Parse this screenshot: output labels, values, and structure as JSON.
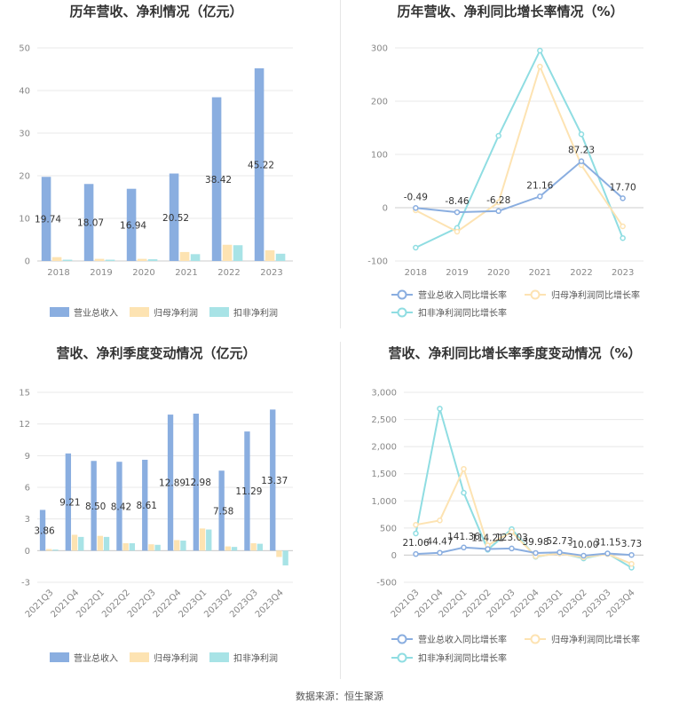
{
  "colors": {
    "revenue": "#8aaee0",
    "netprofit": "#fde3b2",
    "deducted": "#a8e3e6",
    "revenue_line": "#8aaee0",
    "netprofit_line": "#fde3b2",
    "deducted_line": "#8fdde2",
    "grid": "#e8e8e8",
    "axis": "#cccccc"
  },
  "source_text": "数据来源：恒生聚源",
  "chart_data": [
    {
      "id": "c1",
      "type": "bar",
      "title": "历年营收、净利情况（亿元）",
      "categories": [
        "2018",
        "2019",
        "2020",
        "2021",
        "2022",
        "2023"
      ],
      "ylim": [
        0,
        50
      ],
      "yticks": [
        "0",
        "10",
        "20",
        "30",
        "40",
        "50"
      ],
      "series": [
        {
          "name": "营业总收入",
          "values": [
            19.74,
            18.07,
            16.94,
            20.52,
            38.42,
            45.22
          ],
          "labels": [
            "19.74",
            "18.07",
            "16.94",
            "20.52",
            "38.42",
            "45.22"
          ]
        },
        {
          "name": "归母净利润",
          "values": [
            0.9,
            0.5,
            0.5,
            2.1,
            3.8,
            2.5
          ]
        },
        {
          "name": "扣非净利润",
          "values": [
            0.3,
            0.3,
            0.4,
            1.6,
            3.7,
            1.7
          ]
        }
      ],
      "legend": "bottom"
    },
    {
      "id": "c2",
      "type": "line",
      "title": "历年营收、净利同比增长率情况（%）",
      "categories": [
        "2018",
        "2019",
        "2020",
        "2021",
        "2022",
        "2023"
      ],
      "ylim": [
        -100,
        300
      ],
      "yticks": [
        "-100",
        "0",
        "100",
        "200",
        "300"
      ],
      "series": [
        {
          "name": "营业总收入同比增长率",
          "values": [
            -0.49,
            -8.46,
            -6.28,
            21.16,
            87.23,
            17.7
          ],
          "labels": [
            "-0.49",
            "-8.46",
            "-6.28",
            "21.16",
            "87.23",
            "17.70"
          ]
        },
        {
          "name": "归母净利润同比增长率",
          "values": [
            -5,
            -45,
            10,
            265,
            80,
            -35
          ]
        },
        {
          "name": "扣非净利润同比增长率",
          "values": [
            -75,
            -38,
            135,
            295,
            138,
            -57
          ]
        }
      ],
      "legend": "bottom"
    },
    {
      "id": "c3",
      "type": "bar",
      "title": "营收、净利季度变动情况（亿元）",
      "categories": [
        "2021Q3",
        "2021Q4",
        "2022Q1",
        "2022Q2",
        "2022Q3",
        "2022Q4",
        "2023Q1",
        "2023Q2",
        "2023Q3",
        "2023Q4"
      ],
      "ylim": [
        -3,
        15
      ],
      "yticks": [
        "-3",
        "0",
        "3",
        "6",
        "9",
        "12",
        "15"
      ],
      "series": [
        {
          "name": "营业总收入",
          "values": [
            3.86,
            9.21,
            8.5,
            8.42,
            8.61,
            12.89,
            12.98,
            7.58,
            11.29,
            13.37
          ],
          "labels": [
            "3.86",
            "9.21",
            "8.50",
            "8.42",
            "8.61",
            "12.89",
            "12.98",
            "7.58",
            "11.29",
            "13.37"
          ]
        },
        {
          "name": "归母净利润",
          "values": [
            0.15,
            1.5,
            1.4,
            0.7,
            0.6,
            1.0,
            2.1,
            0.4,
            0.7,
            -0.6
          ]
        },
        {
          "name": "扣非净利润",
          "values": [
            0.1,
            1.3,
            1.3,
            0.7,
            0.55,
            0.95,
            2.0,
            0.35,
            0.65,
            -1.4
          ]
        }
      ],
      "legend": "bottom"
    },
    {
      "id": "c4",
      "type": "line",
      "title": "营收、净利同比增长率季度变动情况（%）",
      "categories": [
        "2021Q3",
        "2021Q4",
        "2022Q1",
        "2022Q2",
        "2022Q3",
        "2022Q4",
        "2023Q1",
        "2023Q2",
        "2023Q3",
        "2023Q4"
      ],
      "ylim": [
        -500,
        3000
      ],
      "yticks": [
        "-500",
        "0",
        "500",
        "1,000",
        "1,500",
        "2,000",
        "2,500",
        "3,000"
      ],
      "series": [
        {
          "name": "营业总收入同比增长率",
          "values": [
            21.06,
            44.47,
            141.36,
            114.21,
            123.03,
            39.98,
            52.73,
            -10.0,
            31.15,
            3.73
          ],
          "labels": [
            "21.06",
            "44.47",
            "141.36",
            "114.21",
            "123.03",
            "39.98",
            "52.73",
            "-10.00",
            "31.15",
            "3.73"
          ]
        },
        {
          "name": "归母净利润同比增长率",
          "values": [
            560,
            640,
            1590,
            180,
            430,
            -20,
            30,
            -40,
            20,
            -160
          ]
        },
        {
          "name": "扣非净利润同比增长率",
          "values": [
            400,
            2700,
            1150,
            100,
            480,
            -30,
            40,
            -60,
            30,
            -230
          ]
        }
      ],
      "legend": "bottom"
    }
  ]
}
